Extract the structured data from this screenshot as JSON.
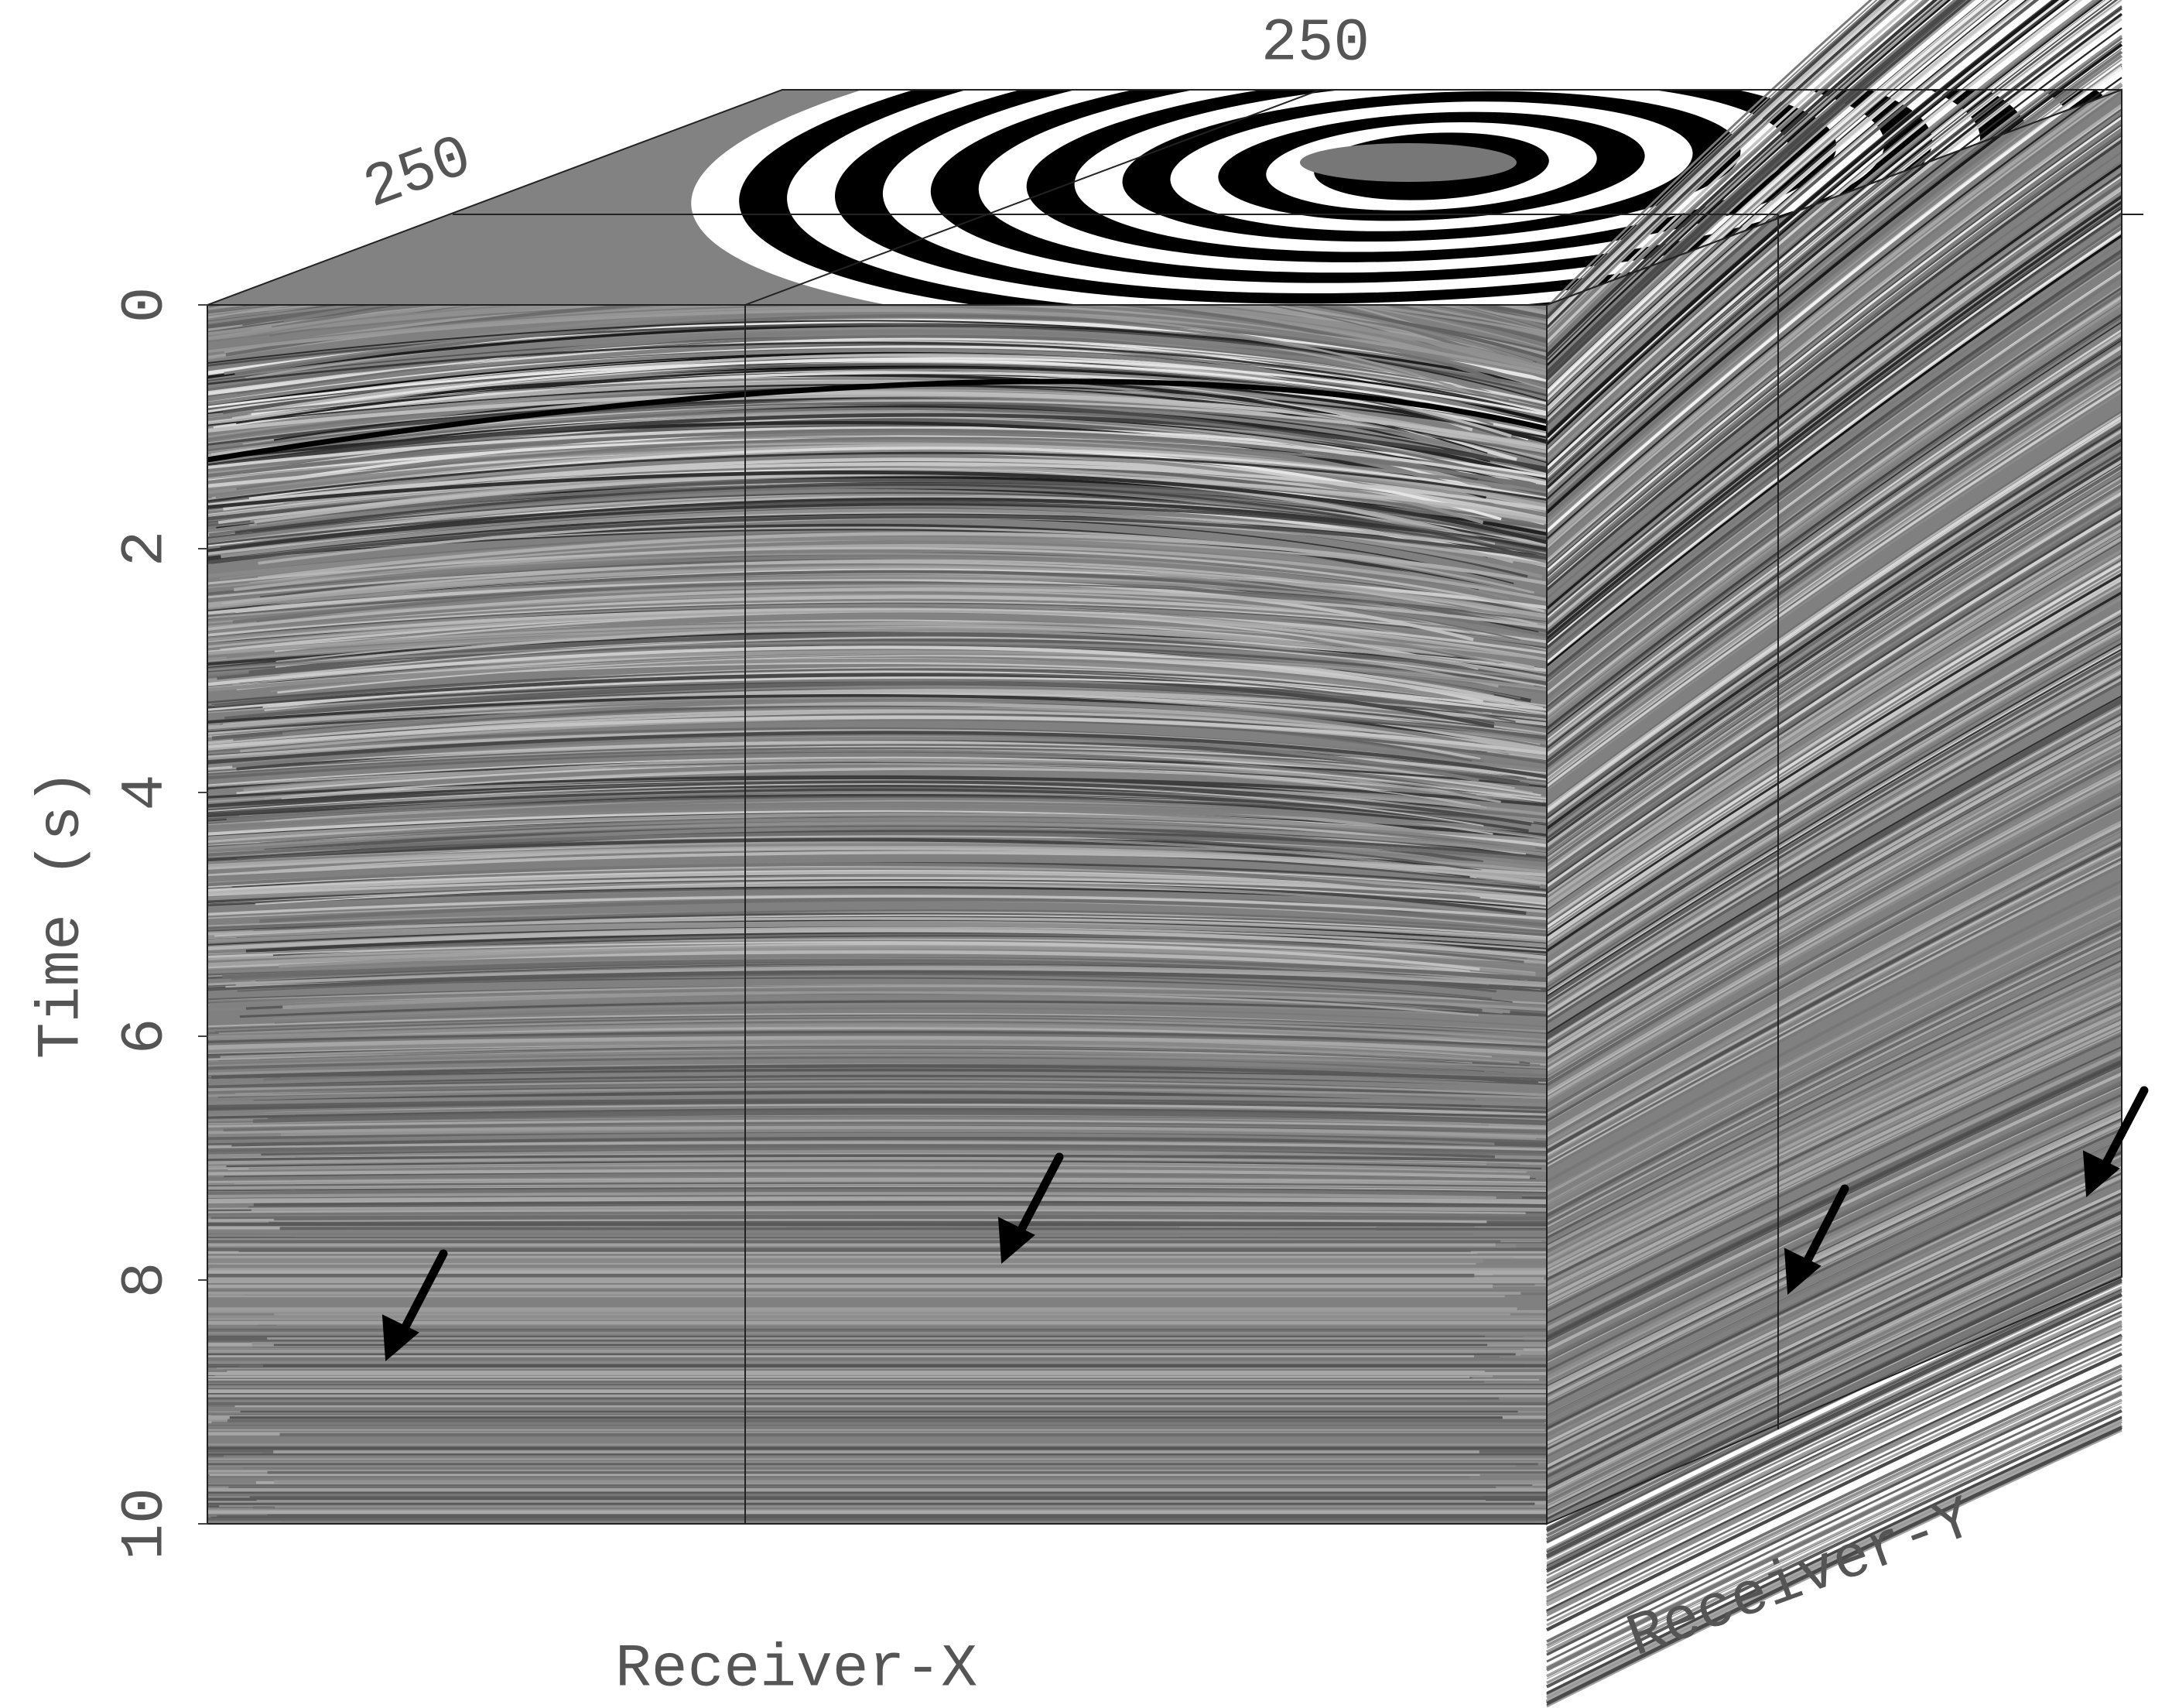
{
  "chart_data": {
    "type": "cube",
    "ylabel": "Time (s)",
    "xlabel": "Receiver-X",
    "zlabel": "Receiver-Y",
    "ylim": [
      0,
      10
    ],
    "yticks": [
      0,
      2,
      4,
      6,
      8,
      10
    ],
    "x_slice": 250,
    "z_slice": 250
  }
}
